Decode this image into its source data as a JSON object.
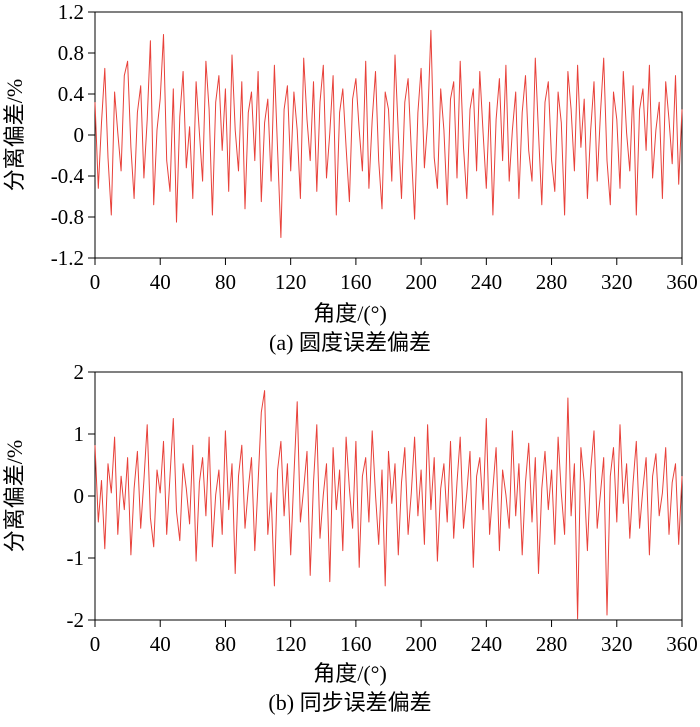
{
  "page": {
    "background": "#ffffff"
  },
  "chart_data": [
    {
      "type": "line",
      "title": "(a) 圆度误差偏差",
      "xlabel": "角度/(°)",
      "ylabel": "分离偏差/%",
      "xlim": [
        0,
        360
      ],
      "ylim": [
        -1.2,
        1.2
      ],
      "xticks": [
        0,
        40,
        80,
        120,
        160,
        200,
        240,
        280,
        320,
        360
      ],
      "yticks": [
        1.2,
        0.8,
        0.4,
        0,
        -0.4,
        -0.8,
        -1.2
      ],
      "ytick_labels": [
        "1.2",
        "0.8",
        "0.4",
        "0",
        "-0.4",
        "-0.8",
        "-1.2"
      ],
      "line_color": "#e8413a",
      "x_step": 2,
      "values": [
        0.32,
        -0.52,
        0.12,
        0.65,
        -0.22,
        -0.78,
        0.42,
        0.02,
        -0.35,
        0.58,
        0.72,
        -0.12,
        -0.62,
        0.22,
        0.48,
        -0.42,
        0.15,
        0.92,
        -0.68,
        0.05,
        0.35,
        0.98,
        -0.25,
        -0.55,
        0.45,
        -0.85,
        0.18,
        0.62,
        -0.32,
        0.08,
        -0.62,
        0.52,
        0.02,
        -0.45,
        0.72,
        0.25,
        -0.78,
        0.32,
        0.58,
        -0.15,
        0.45,
        -0.55,
        0.78,
        0.05,
        -0.35,
        0.52,
        -0.72,
        0.22,
        0.42,
        -0.25,
        0.62,
        -0.65,
        0.12,
        0.35,
        -0.45,
        0.68,
        -0.15,
        -1.0,
        0.25,
        0.48,
        -0.35,
        0.42,
        0.05,
        -0.62,
        0.75,
        0.15,
        -0.25,
        0.52,
        -0.55,
        0.32,
        0.68,
        -0.42,
        0.02,
        0.58,
        -0.78,
        0.22,
        0.45,
        -0.12,
        -0.65,
        0.35,
        0.55,
        0.05,
        -0.35,
        0.72,
        -0.52,
        0.15,
        0.62,
        -0.25,
        -0.72,
        0.42,
        0.25,
        -0.45,
        0.78,
        0.02,
        -0.62,
        0.32,
        0.55,
        -0.15,
        -0.82,
        0.22,
        0.65,
        -0.32,
        0.12,
        1.02,
        -0.22,
        -0.52,
        0.45,
        0.05,
        -0.68,
        0.35,
        0.52,
        -0.42,
        0.72,
        -0.12,
        -0.62,
        0.25,
        0.45,
        -0.35,
        0.62,
        0.02,
        -0.52,
        0.32,
        -0.78,
        0.15,
        0.55,
        -0.25,
        0.68,
        -0.45,
        0.05,
        0.42,
        -0.62,
        0.22,
        0.58,
        -0.15,
        -0.45,
        0.75,
        0.02,
        -0.68,
        0.32,
        0.52,
        -0.25,
        -0.55,
        0.42,
        0.12,
        -0.78,
        0.62,
        0.25,
        -0.35,
        0.68,
        -0.12,
        0.35,
        -0.62,
        0.05,
        0.52,
        -0.45,
        0.22,
        0.75,
        -0.25,
        -0.68,
        0.42,
        0.15,
        -0.52,
        0.62,
        0.02,
        -0.35,
        0.48,
        -0.78,
        0.25,
        0.45,
        -0.15,
        0.68,
        -0.42,
        0.05,
        0.32,
        -0.62,
        0.52,
        0.15,
        -0.28,
        0.58,
        -0.48,
        0.25
      ]
    },
    {
      "type": "line",
      "title": "(b) 同步误差偏差",
      "xlabel": "角度/(°)",
      "ylabel": "分离偏差/%",
      "xlim": [
        0,
        360
      ],
      "ylim": [
        -2,
        2
      ],
      "xticks": [
        0,
        40,
        80,
        120,
        160,
        200,
        240,
        280,
        320,
        360
      ],
      "yticks": [
        2,
        1,
        0,
        -1,
        -2
      ],
      "ytick_labels": [
        "2",
        "1",
        "0",
        "-1",
        "-2"
      ],
      "line_color": "#e8413a",
      "x_step": 2,
      "values": [
        0.82,
        -0.42,
        0.25,
        -0.85,
        0.52,
        0.05,
        0.95,
        -0.62,
        0.32,
        -0.22,
        0.62,
        -0.95,
        0.12,
        0.72,
        -0.52,
        0.25,
        1.15,
        -0.35,
        -0.82,
        0.42,
        0.05,
        0.88,
        -0.62,
        0.32,
        1.25,
        -0.25,
        -0.72,
        0.52,
        0.12,
        -0.45,
        0.82,
        -1.05,
        0.22,
        0.62,
        -0.32,
        0.95,
        -0.82,
        0.02,
        0.42,
        -0.62,
        1.05,
        -0.22,
        0.52,
        -1.25,
        0.32,
        0.82,
        -0.52,
        0.12,
        0.62,
        -0.88,
        0.22,
        1.35,
        1.7,
        -0.62,
        0.05,
        -1.45,
        0.42,
        0.88,
        -0.32,
        0.52,
        -0.95,
        0.32,
        1.52,
        -0.42,
        0.12,
        0.72,
        -1.28,
        0.22,
        1.15,
        -0.68,
        0.02,
        0.52,
        -1.38,
        0.78,
        -0.22,
        0.42,
        -0.88,
        0.95,
        0.12,
        -0.52,
        0.88,
        -1.15,
        0.32,
        0.62,
        -0.42,
        1.05,
        0.02,
        -0.78,
        0.42,
        -1.45,
        0.72,
        -0.12,
        0.52,
        -0.95,
        0.22,
        0.78,
        -0.62,
        0.05,
        0.95,
        -0.32,
        0.42,
        -0.78,
        1.15,
        -0.22,
        0.62,
        -1.05,
        0.12,
        0.52,
        -0.42,
        0.88,
        -0.68,
        0.22,
        0.95,
        -0.52,
        0.05,
        0.72,
        -1.15,
        0.32,
        0.62,
        -0.22,
        1.25,
        -0.62,
        0.12,
        0.78,
        -0.88,
        0.42,
        0.02,
        -0.52,
        1.05,
        -0.32,
        0.52,
        -0.95,
        0.22,
        0.85,
        -0.42,
        0.62,
        -1.25,
        0.12,
        0.72,
        -0.22,
        0.42,
        -0.78,
        0.95,
        0.05,
        -0.62,
        1.58,
        -0.32,
        0.52,
        -1.98,
        0.78,
        0.22,
        -0.88,
        0.42,
        1.05,
        -0.52,
        0.05,
        0.62,
        -1.92,
        0.32,
        0.78,
        -0.42,
        1.15,
        -0.12,
        0.52,
        -0.68,
        0.22,
        0.88,
        -0.52,
        0.12,
        0.62,
        -0.95,
        0.32,
        0.68,
        -0.32,
        0.05,
        0.78,
        -0.62,
        0.22,
        0.52,
        -0.78,
        0.32
      ]
    }
  ]
}
